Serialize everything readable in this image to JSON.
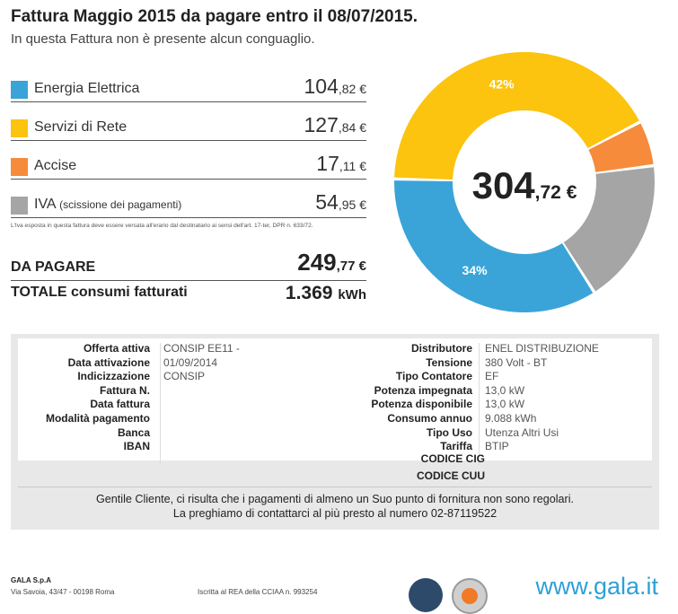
{
  "header": {
    "title": "Fattura Maggio 2015 da pagare entro il 08/07/2015.",
    "subtitle": "In questa Fattura non è presente alcun conguaglio."
  },
  "breakdown": [
    {
      "label": "Energia Elettrica",
      "note": "",
      "int": "104",
      "dec": ",82 €",
      "color": "#3aa4d8"
    },
    {
      "label": "Servizi di Rete",
      "note": "",
      "int": "127",
      "dec": ",84 €",
      "color": "#fcc30f"
    },
    {
      "label": "Accise",
      "note": "",
      "int": "17",
      "dec": ",11 €",
      "color": "#f58b3b"
    },
    {
      "label": "IVA",
      "note": "(scissione dei pagamenti)",
      "int": "54",
      "dec": ",95 €",
      "color": "#a5a5a5"
    }
  ],
  "footnote": "L'Iva esposta in questa fattura deve essere versata all'erario dal destinatario ai sensi dell'art. 17-ter, DPR n. 633/72.",
  "totals": {
    "to_pay_label": "DA PAGARE",
    "to_pay_int": "249",
    "to_pay_dec": ",77 €",
    "consumption_label": "TOTALE consumi fatturati",
    "consumption_value": "1.369",
    "consumption_unit": "kWh"
  },
  "chart_data": {
    "type": "pie",
    "center_int": "304",
    "center_dec": ",72 €",
    "slices": [
      {
        "label": "Energia Elettrica",
        "value": 104.82,
        "color": "#3aa4d8",
        "pct_label": "34%"
      },
      {
        "label": "Servizi di Rete",
        "value": 127.84,
        "color": "#fcc30f",
        "pct_label": "42%"
      },
      {
        "label": "Accise",
        "value": 17.11,
        "color": "#f58b3b",
        "pct_label": ""
      },
      {
        "label": "IVA",
        "value": 54.95,
        "color": "#a5a5a5",
        "pct_label": ""
      }
    ]
  },
  "contract": {
    "left": [
      {
        "k": "Offerta attiva",
        "v": "CONSIP EE11 -"
      },
      {
        "k": "Data attivazione",
        "v": "01/09/2014"
      },
      {
        "k": "Indicizzazione",
        "v": "CONSIP"
      },
      {
        "k": "Fattura N.",
        "v": ""
      },
      {
        "k": "Data fattura",
        "v": ""
      },
      {
        "k": "Modalità pagamento",
        "v": ""
      },
      {
        "k": "Banca",
        "v": ""
      },
      {
        "k": "IBAN",
        "v": ""
      }
    ],
    "right": [
      {
        "k": "Distributore",
        "v": "ENEL DISTRIBUZIONE"
      },
      {
        "k": "Tensione",
        "v": "380 Volt - BT"
      },
      {
        "k": "Tipo Contatore",
        "v": "EF"
      },
      {
        "k": "Potenza impegnata",
        "v": "13,0 kW"
      },
      {
        "k": "Potenza disponibile",
        "v": "13,0 kW"
      },
      {
        "k": "Consumo annuo",
        "v": "9.088 kWh"
      },
      {
        "k": "Tipo Uso",
        "v": "Utenza Altri Usi"
      },
      {
        "k": "Tariffa",
        "v": "BTIP"
      }
    ],
    "codice_cig": "CODICE CIG",
    "codice_cuu": "CODICE CUU"
  },
  "notice": {
    "line1": "Gentile Cliente, ci risulta che i pagamenti di almeno un Suo punto di fornitura non sono regolari.",
    "line2": "La preghiamo di contattarci al più presto al numero 02-87119522"
  },
  "footer": {
    "company": "GALA S.p.A",
    "address": "Via Savoia, 43/47 - 00198 Roma",
    "rea": "Iscritta al REA della CCIAA n. 993254",
    "website": "www.gala.it"
  }
}
